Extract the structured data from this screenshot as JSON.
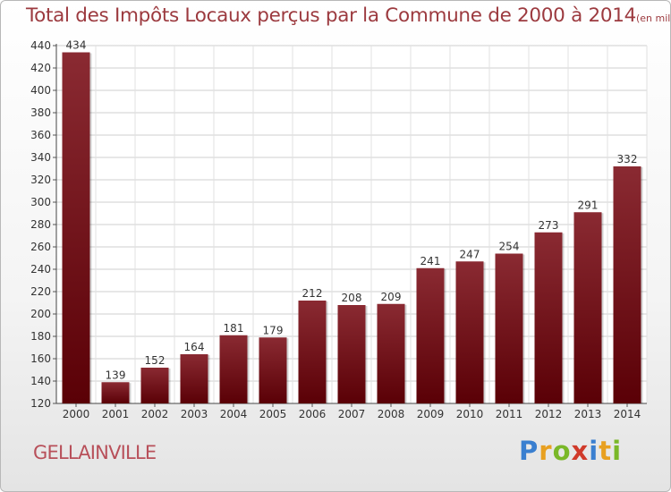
{
  "chart_data": {
    "type": "bar",
    "title": "Total des Impôts Locaux perçus par la Commune de 2000 à 2014",
    "unit": "(en milliers d'€)",
    "xlabel": "",
    "ylabel": "",
    "categories": [
      "2000",
      "2001",
      "2002",
      "2003",
      "2004",
      "2005",
      "2006",
      "2007",
      "2008",
      "2009",
      "2010",
      "2011",
      "2012",
      "2013",
      "2014"
    ],
    "values": [
      434,
      139,
      152,
      164,
      181,
      179,
      212,
      208,
      209,
      241,
      247,
      254,
      273,
      291,
      332
    ],
    "ylim": [
      120,
      440
    ],
    "yticks": [
      120,
      140,
      160,
      180,
      200,
      220,
      240,
      260,
      280,
      300,
      320,
      340,
      360,
      380,
      400,
      420,
      440
    ],
    "grid": true,
    "bar_color_top": "#8a2a32",
    "bar_color_bottom": "#5a0006"
  },
  "commune": "GELLAINVILLE",
  "brand": {
    "letters": [
      "P",
      "r",
      "o",
      "x",
      "i",
      "t",
      "i"
    ],
    "colors": [
      "#3a7fd0",
      "#e8a020",
      "#7ab828",
      "#d03a2a",
      "#3a7fd0",
      "#e8a020",
      "#7ab828"
    ]
  }
}
